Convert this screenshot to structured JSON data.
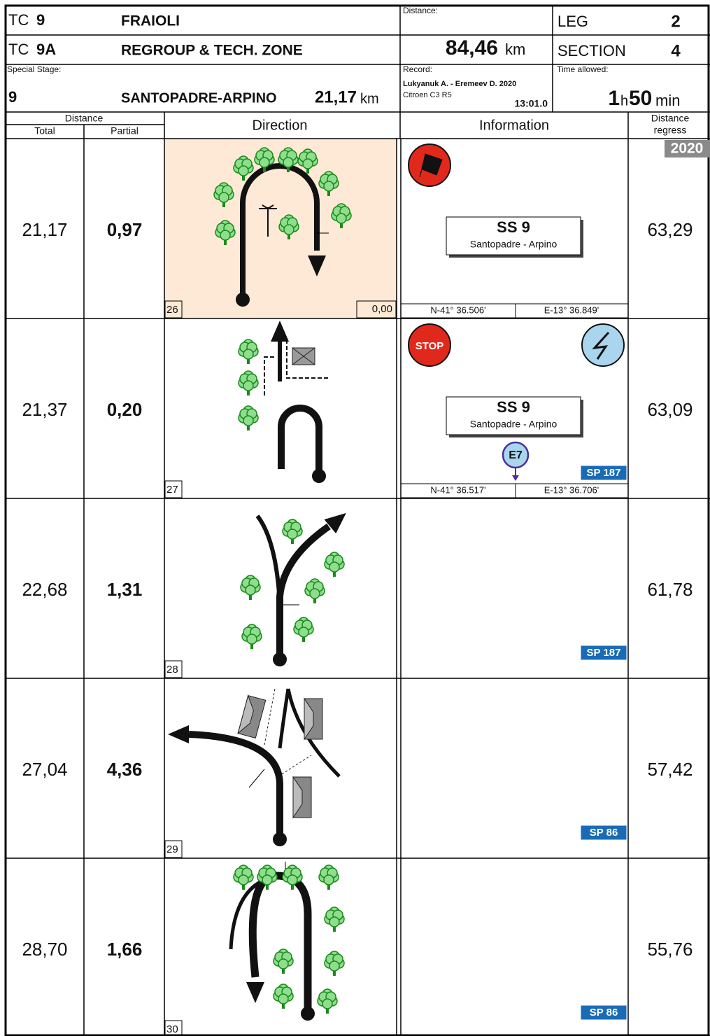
{
  "header": {
    "tc_row1": {
      "prefix": "TC",
      "number": "9",
      "name": "FRAIOLI"
    },
    "tc_row2": {
      "prefix": "TC",
      "number": "9A",
      "name": "REGROUP & TECH. ZONE"
    },
    "special_stage": {
      "label": "Special Stage:",
      "number": "9",
      "name": "SANTOPADRE-ARPINO",
      "length": "21,17",
      "unit": "km"
    },
    "distance": {
      "label": "Distance:",
      "value": "84,46",
      "unit": "km"
    },
    "record": {
      "label": "Record:",
      "drivers": "Lukyanuk A. - Eremeev D. 2020",
      "car": "Citroen C3 R5",
      "time": "13:01.0"
    },
    "leg": {
      "label": "LEG",
      "value": "2"
    },
    "section": {
      "label": "SECTION",
      "value": "4"
    },
    "time_allowed": {
      "label": "Time allowed:",
      "hours": "1",
      "hours_unit": "h",
      "minutes": "50",
      "minutes_unit": "min"
    }
  },
  "columns": {
    "distance": "Distance",
    "total": "Total",
    "partial": "Partial",
    "direction": "Direction",
    "information": "Information",
    "regress_1": "Distance",
    "regress_2": "regress"
  },
  "badge": "2020",
  "rows": [
    {
      "total": "21,17",
      "partial": "0,97",
      "number": "26",
      "odo": "0,00",
      "sign_title": "SS 9",
      "sign_sub": "Santopadre - Arpino",
      "coords": [
        "N-41° 36.506'",
        "E-13° 36.849'"
      ],
      "regress": "63,29"
    },
    {
      "total": "21,37",
      "partial": "0,20",
      "number": "27",
      "stop": "STOP",
      "sign_title": "SS 9",
      "sign_sub": "Santopadre - Arpino",
      "marker": "E7",
      "road": "SP 187",
      "coords": [
        "N-41° 36.517'",
        "E-13° 36.706'"
      ],
      "regress": "63,09"
    },
    {
      "total": "22,68",
      "partial": "1,31",
      "number": "28",
      "road": "SP 187",
      "regress": "61,78"
    },
    {
      "total": "27,04",
      "partial": "4,36",
      "number": "29",
      "road": "SP 86",
      "regress": "57,42"
    },
    {
      "total": "28,70",
      "partial": "1,66",
      "number": "30",
      "road": "SP 86",
      "regress": "55,76"
    }
  ]
}
